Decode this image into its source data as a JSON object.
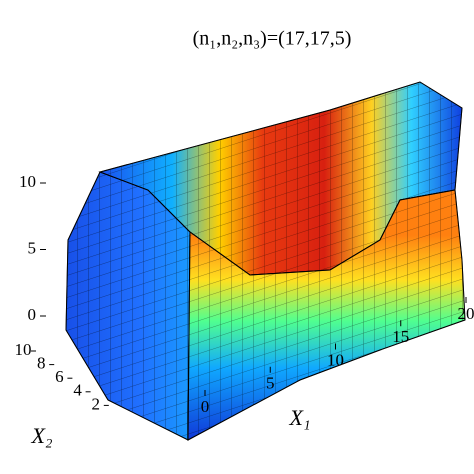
{
  "chart_data": {
    "type": "surface3d",
    "title": "(n₁,n₂,n₃)=(17,17,5)",
    "xlabel": "X₁",
    "ylabel": "X₂",
    "xlim": [
      0,
      20
    ],
    "xticks": [
      0,
      5,
      10,
      15,
      20
    ],
    "ylim": [
      0,
      10
    ],
    "yticks": [
      2,
      4,
      6,
      8,
      10
    ],
    "zlim": [
      0,
      10
    ],
    "zticks": [
      0,
      5,
      10
    ]
  }
}
